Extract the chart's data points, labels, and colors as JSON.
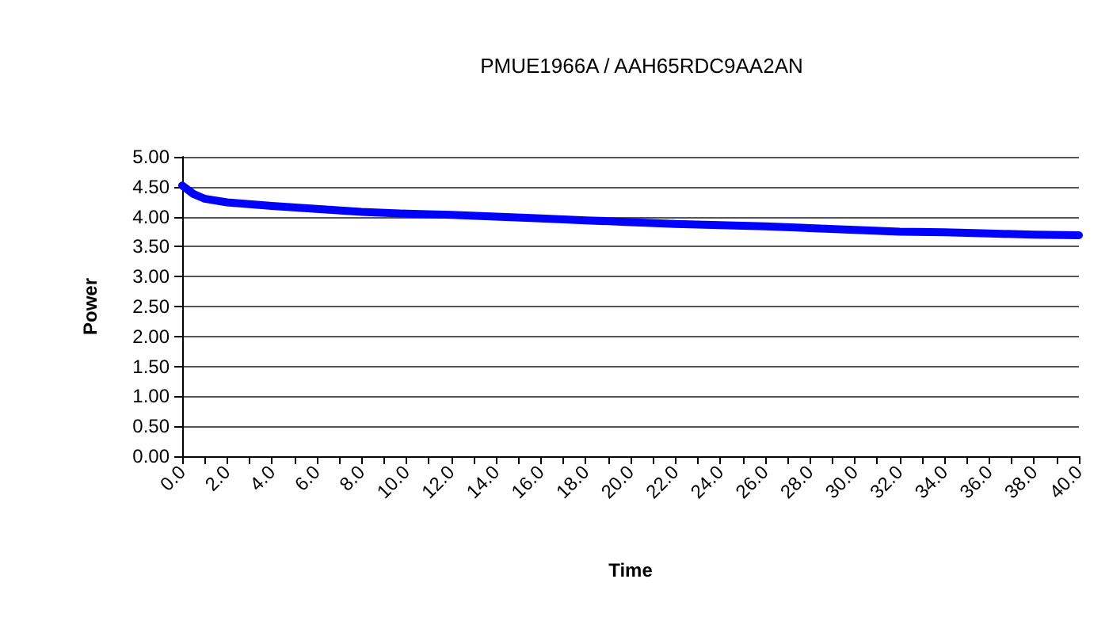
{
  "chart_data": {
    "type": "line",
    "title": "PMUE1966A / AAH65RDC9AA2AN",
    "xlabel": "Time",
    "ylabel": "Power",
    "x": [
      0,
      0.5,
      1,
      2,
      4,
      6,
      8,
      10,
      12,
      14,
      16,
      18,
      20,
      22,
      24,
      26,
      28,
      30,
      32,
      34,
      36,
      38,
      40
    ],
    "series": [
      {
        "color": "#0000ff",
        "values": [
          4.52,
          4.38,
          4.3,
          4.24,
          4.18,
          4.13,
          4.08,
          4.05,
          4.03,
          4.0,
          3.97,
          3.94,
          3.91,
          3.88,
          3.86,
          3.84,
          3.81,
          3.78,
          3.75,
          3.74,
          3.72,
          3.7,
          3.69
        ]
      }
    ],
    "xlim": [
      0,
      40
    ],
    "xticks": [
      {
        "value": 0,
        "label": "0.0"
      },
      {
        "value": 1,
        "label": null
      },
      {
        "value": 2,
        "label": "2.0"
      },
      {
        "value": 3,
        "label": null
      },
      {
        "value": 4,
        "label": "4.0"
      },
      {
        "value": 5,
        "label": null
      },
      {
        "value": 6,
        "label": "6.0"
      },
      {
        "value": 7,
        "label": null
      },
      {
        "value": 8,
        "label": "8.0"
      },
      {
        "value": 9,
        "label": null
      },
      {
        "value": 10,
        "label": "10.0"
      },
      {
        "value": 11,
        "label": null
      },
      {
        "value": 12,
        "label": "12.0"
      },
      {
        "value": 13,
        "label": null
      },
      {
        "value": 14,
        "label": "14.0"
      },
      {
        "value": 15,
        "label": null
      },
      {
        "value": 16,
        "label": "16.0"
      },
      {
        "value": 17,
        "label": null
      },
      {
        "value": 18,
        "label": "18.0"
      },
      {
        "value": 19,
        "label": null
      },
      {
        "value": 20,
        "label": "20.0"
      },
      {
        "value": 21,
        "label": null
      },
      {
        "value": 22,
        "label": "22.0"
      },
      {
        "value": 23,
        "label": null
      },
      {
        "value": 24,
        "label": "24.0"
      },
      {
        "value": 25,
        "label": null
      },
      {
        "value": 26,
        "label": "26.0"
      },
      {
        "value": 27,
        "label": null
      },
      {
        "value": 28,
        "label": "28.0"
      },
      {
        "value": 29,
        "label": null
      },
      {
        "value": 30,
        "label": "30.0"
      },
      {
        "value": 31,
        "label": null
      },
      {
        "value": 32,
        "label": "32.0"
      },
      {
        "value": 33,
        "label": null
      },
      {
        "value": 34,
        "label": "34.0"
      },
      {
        "value": 35,
        "label": null
      },
      {
        "value": 36,
        "label": "36.0"
      },
      {
        "value": 37,
        "label": null
      },
      {
        "value": 38,
        "label": "38.0"
      },
      {
        "value": 39,
        "label": null
      },
      {
        "value": 40,
        "label": "40.0"
      }
    ],
    "ylim": [
      0,
      5
    ],
    "yticks": [
      {
        "value": 0,
        "label": "0.00"
      },
      {
        "value": 0.5,
        "label": "0.50"
      },
      {
        "value": 1,
        "label": "1.00"
      },
      {
        "value": 1.5,
        "label": "1.50"
      },
      {
        "value": 2,
        "label": "2.00"
      },
      {
        "value": 2.5,
        "label": "2.50"
      },
      {
        "value": 3,
        "label": "3.00"
      },
      {
        "value": 3.5,
        "label": "3.50"
      },
      {
        "value": 4,
        "label": "4.00"
      },
      {
        "value": 4.5,
        "label": "4.50"
      },
      {
        "value": 5,
        "label": "5.00"
      }
    ],
    "grid": "y",
    "marker": "none",
    "line_style": "solid"
  }
}
